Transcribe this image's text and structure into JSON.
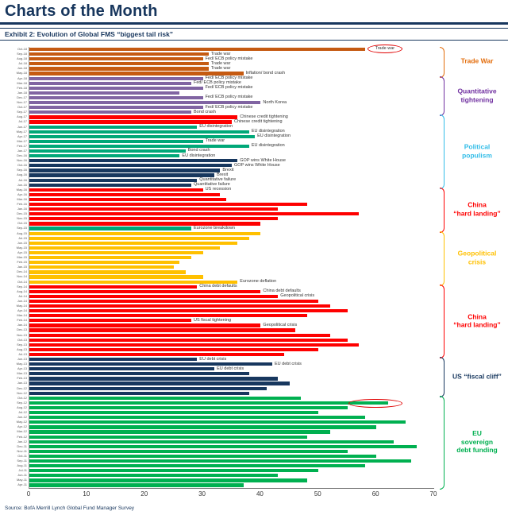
{
  "page": {
    "title": "Charts of the Month",
    "exhibit": "Exhibit 2: Evolution of Global FMS “biggest tail risk”",
    "source": "Source: BofA Merrill Lynch Global Fund Manager Survey"
  },
  "chart_data": {
    "type": "bar",
    "orientation": "horizontal",
    "title": "Evolution of Global FMS “biggest tail risk”",
    "xlim": [
      0,
      70
    ],
    "xticks": [
      0,
      10,
      20,
      30,
      40,
      50,
      60,
      70
    ],
    "grid": false,
    "legend_position": "right-brackets",
    "palette": {
      "o": "#C55A11",
      "p": "#8064A2",
      "r": "#FE0000",
      "g": "#00A878",
      "n": "#17375E",
      "y": "#FFC000",
      "e": "#00B050"
    },
    "annotation_color": "#E00000",
    "rows": [
      {
        "m": "Oct-18",
        "v": 58,
        "c": "o",
        "l": "Trade war",
        "circ": true
      },
      {
        "m": "Sep-18",
        "v": 31,
        "c": "o",
        "l": "Trade war"
      },
      {
        "m": "Aug-18",
        "v": 30,
        "c": "o",
        "l": "Fed/ ECB policy mistake"
      },
      {
        "m": "Jul-18",
        "v": 31,
        "c": "o",
        "l": "Trade war"
      },
      {
        "m": "Jun-18",
        "v": 31,
        "c": "o",
        "l": "Trade war"
      },
      {
        "m": "May-18",
        "v": 37,
        "c": "o",
        "l": "Inflation/ bond crash"
      },
      {
        "m": "Apr-18",
        "v": 30,
        "c": "p",
        "l": "Fed/ ECB policy mistake"
      },
      {
        "m": "Mar-18",
        "v": 28,
        "c": "p",
        "l": "Fed/ ECB policy mistake"
      },
      {
        "m": "Feb-18",
        "v": 30,
        "c": "p",
        "l": "Fed/ ECB policy mistake"
      },
      {
        "m": "Jan-18",
        "v": 26,
        "c": "p"
      },
      {
        "m": "Dec-17",
        "v": 30,
        "c": "p",
        "l": "Fed/ ECB policy mistake"
      },
      {
        "m": "Nov-17",
        "v": 40,
        "c": "p",
        "l": "North Korea"
      },
      {
        "m": "Oct-17",
        "v": 30,
        "c": "p",
        "l": "Fed/ ECB policy mistake"
      },
      {
        "m": "Sep-17",
        "v": 28,
        "c": "p",
        "l": "Bond crash"
      },
      {
        "m": "Aug-17",
        "v": 36,
        "c": "r",
        "l": "Chinese credit tightening"
      },
      {
        "m": "Jul-17",
        "v": 35,
        "c": "r",
        "l": "Chinese credit tightening"
      },
      {
        "m": "Jun-17",
        "v": 29,
        "c": "g",
        "l": "EU disintegration"
      },
      {
        "m": "May-17",
        "v": 38,
        "c": "g",
        "l": "EU disintegration"
      },
      {
        "m": "Apr-17",
        "v": 39,
        "c": "g",
        "l": "EU disintegration"
      },
      {
        "m": "Mar-17",
        "v": 30,
        "c": "g",
        "l": "Trade war"
      },
      {
        "m": "Feb-17",
        "v": 38,
        "c": "g",
        "l": "EU disintegration"
      },
      {
        "m": "Jan-17",
        "v": 27,
        "c": "g",
        "l": "Bond crash"
      },
      {
        "m": "Dec-16",
        "v": 26,
        "c": "g",
        "l": "EU disintegration"
      },
      {
        "m": "Nov-16",
        "v": 36,
        "c": "n",
        "l": "GOP wins White House"
      },
      {
        "m": "Oct-16",
        "v": 35,
        "c": "n",
        "l": "GOP wins White House"
      },
      {
        "m": "Sep-16",
        "v": 33,
        "c": "n",
        "l": "Brexit"
      },
      {
        "m": "Aug-16",
        "v": 32,
        "c": "n",
        "l": "Brexit"
      },
      {
        "m": "Jul-16",
        "v": 29,
        "c": "n",
        "l": "Quantitative failure"
      },
      {
        "m": "Jun-16",
        "v": 28,
        "c": "n",
        "l": "Quantitative failure"
      },
      {
        "m": "May-16",
        "v": 30,
        "c": "r",
        "l": "US recession"
      },
      {
        "m": "Apr-16",
        "v": 33,
        "c": "r"
      },
      {
        "m": "Mar-16",
        "v": 34,
        "c": "r"
      },
      {
        "m": "Feb-16",
        "v": 48,
        "c": "r"
      },
      {
        "m": "Jan-16",
        "v": 43,
        "c": "r"
      },
      {
        "m": "Dec-15",
        "v": 57,
        "c": "r"
      },
      {
        "m": "Nov-15",
        "v": 43,
        "c": "r"
      },
      {
        "m": "Oct-15",
        "v": 40,
        "c": "r"
      },
      {
        "m": "Sep-15",
        "v": 28,
        "c": "g",
        "l": "Eurozone breakdown"
      },
      {
        "m": "Aug-15",
        "v": 40,
        "c": "y"
      },
      {
        "m": "Jul-15",
        "v": 38,
        "c": "y"
      },
      {
        "m": "Jun-15",
        "v": 36,
        "c": "y"
      },
      {
        "m": "May-15",
        "v": 33,
        "c": "y"
      },
      {
        "m": "Apr-15",
        "v": 30,
        "c": "y"
      },
      {
        "m": "Mar-15",
        "v": 28,
        "c": "y"
      },
      {
        "m": "Feb-15",
        "v": 26,
        "c": "y"
      },
      {
        "m": "Jan-15",
        "v": 25,
        "c": "y"
      },
      {
        "m": "Dec-14",
        "v": 27,
        "c": "y"
      },
      {
        "m": "Nov-14",
        "v": 30,
        "c": "y"
      },
      {
        "m": "Oct-14",
        "v": 36,
        "c": "y",
        "l": "Eurozone deflation"
      },
      {
        "m": "Sep-14",
        "v": 29,
        "c": "r",
        "l": "China debt defaults"
      },
      {
        "m": "Aug-14",
        "v": 40,
        "c": "r",
        "l": "China debt defaults"
      },
      {
        "m": "Jul-14",
        "v": 43,
        "c": "r",
        "l": "Geopolitical crisis"
      },
      {
        "m": "Jun-14",
        "v": 50,
        "c": "r"
      },
      {
        "m": "May-14",
        "v": 52,
        "c": "r"
      },
      {
        "m": "Apr-14",
        "v": 55,
        "c": "r"
      },
      {
        "m": "Mar-14",
        "v": 48,
        "c": "r"
      },
      {
        "m": "Feb-14",
        "v": 28,
        "c": "r",
        "l": "US fiscal tightening"
      },
      {
        "m": "Jan-14",
        "v": 40,
        "c": "r",
        "l": "Geopolitical crisis"
      },
      {
        "m": "Dec-13",
        "v": 46,
        "c": "r"
      },
      {
        "m": "Nov-13",
        "v": 52,
        "c": "r"
      },
      {
        "m": "Oct-13",
        "v": 55,
        "c": "r"
      },
      {
        "m": "Sep-13",
        "v": 57,
        "c": "r"
      },
      {
        "m": "Aug-13",
        "v": 50,
        "c": "r"
      },
      {
        "m": "Jul-13",
        "v": 44,
        "c": "r"
      },
      {
        "m": "Jun-13",
        "v": 29,
        "c": "n",
        "l": "EU debt crisis"
      },
      {
        "m": "May-13",
        "v": 42,
        "c": "n",
        "l": "EU debt crisis"
      },
      {
        "m": "Apr-13",
        "v": 32,
        "c": "n",
        "l": "EU debt crisis"
      },
      {
        "m": "Mar-13",
        "v": 38,
        "c": "n"
      },
      {
        "m": "Feb-13",
        "v": 43,
        "c": "n"
      },
      {
        "m": "Jan-13",
        "v": 45,
        "c": "n"
      },
      {
        "m": "Dec-12",
        "v": 41,
        "c": "n"
      },
      {
        "m": "Nov-12",
        "v": 38,
        "c": "n"
      },
      {
        "m": "Oct-12",
        "v": 47,
        "c": "e"
      },
      {
        "m": "Sep-12",
        "v": 62,
        "c": "e",
        "circ": true
      },
      {
        "m": "Aug-12",
        "v": 55,
        "c": "e"
      },
      {
        "m": "Jul-12",
        "v": 50,
        "c": "e"
      },
      {
        "m": "Jun-12",
        "v": 58,
        "c": "e"
      },
      {
        "m": "May-12",
        "v": 65,
        "c": "e"
      },
      {
        "m": "Apr-12",
        "v": 60,
        "c": "e"
      },
      {
        "m": "Mar-12",
        "v": 52,
        "c": "e"
      },
      {
        "m": "Feb-12",
        "v": 48,
        "c": "e"
      },
      {
        "m": "Jan-12",
        "v": 63,
        "c": "e"
      },
      {
        "m": "Dec-11",
        "v": 67,
        "c": "e"
      },
      {
        "m": "Nov-11",
        "v": 55,
        "c": "e"
      },
      {
        "m": "Oct-11",
        "v": 60,
        "c": "e"
      },
      {
        "m": "Sep-11",
        "v": 66,
        "c": "e"
      },
      {
        "m": "Aug-11",
        "v": 58,
        "c": "e"
      },
      {
        "m": "Jul-11",
        "v": 50,
        "c": "e"
      },
      {
        "m": "Jun-11",
        "v": 43,
        "c": "e"
      },
      {
        "m": "May-11",
        "v": 48,
        "c": "e"
      },
      {
        "m": "Apr-11",
        "v": 37,
        "c": "e"
      }
    ],
    "groups": [
      {
        "label_lines": [
          "Trade War"
        ],
        "color": "#E36C0A",
        "start": 1,
        "end": 6
      },
      {
        "label_lines": [
          "Quantitative",
          "tightening"
        ],
        "color": "#7030A0",
        "start": 7,
        "end": 14
      },
      {
        "label_lines": [
          "Political",
          "populism"
        ],
        "color": "#33BDE8",
        "start": 15,
        "end": 29
      },
      {
        "label_lines": [
          "China",
          "“hard landing”"
        ],
        "color": "#FE0000",
        "start": 30,
        "end": 38
      },
      {
        "label_lines": [
          "Geopolitical",
          "crisis"
        ],
        "color": "#FFC000",
        "start": 39,
        "end": 49
      },
      {
        "label_lines": [
          "China",
          "“hard landing”"
        ],
        "color": "#FE0000",
        "start": 50,
        "end": 64
      },
      {
        "label_lines": [
          "US “fiscal cliff”"
        ],
        "color": "#17375E",
        "start": 65,
        "end": 72
      },
      {
        "label_lines": [
          "EU",
          "sovereign",
          "debt funding"
        ],
        "color": "#00B050",
        "start": 73,
        "end": 91
      }
    ]
  }
}
